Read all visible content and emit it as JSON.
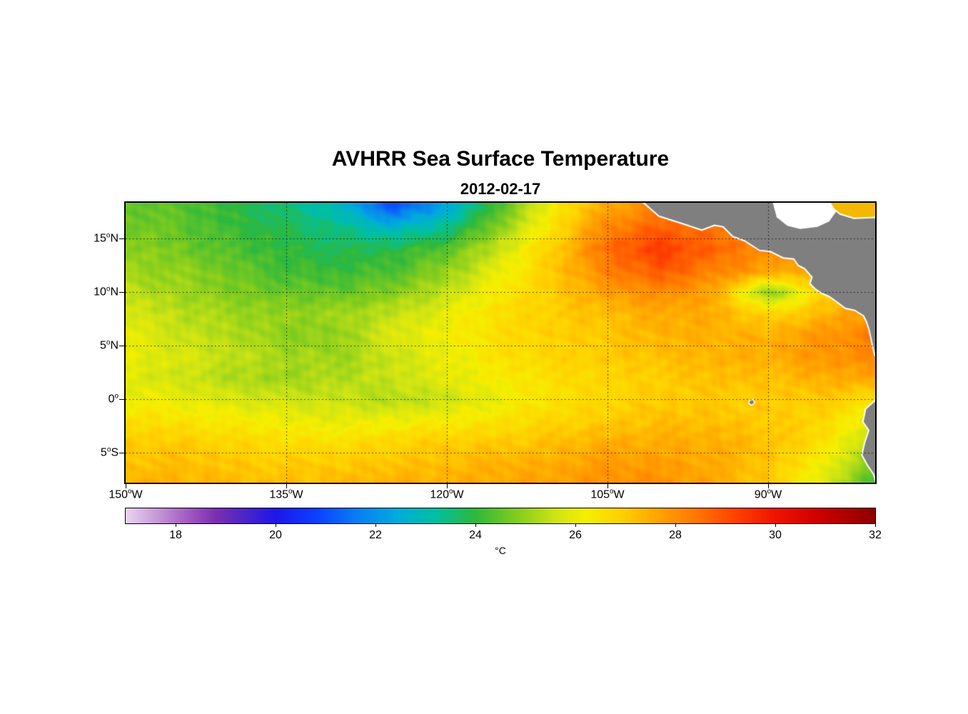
{
  "chart_data": {
    "type": "heatmap",
    "title": "AVHRR Sea Surface Temperature",
    "subtitle": "2012-02-17",
    "colorbar_label": "°C",
    "grid_on": true,
    "x_axis": {
      "min": -150,
      "max": -80,
      "ticks": [
        {
          "lon": -150,
          "num": "150",
          "deg": "o",
          "suffix": "W"
        },
        {
          "lon": -135,
          "num": "135",
          "deg": "o",
          "suffix": "W"
        },
        {
          "lon": -120,
          "num": "120",
          "deg": "o",
          "suffix": "W"
        },
        {
          "lon": -105,
          "num": "105",
          "deg": "o",
          "suffix": "W"
        },
        {
          "lon": -90,
          "num": "90",
          "deg": "o",
          "suffix": "W"
        }
      ]
    },
    "y_axis": {
      "min": -7.78,
      "max": 18.35,
      "ticks": [
        {
          "lat": 15,
          "num": "15",
          "deg": "o",
          "suffix": "N"
        },
        {
          "lat": 10,
          "num": "10",
          "deg": "o",
          "suffix": "N"
        },
        {
          "lat": 5,
          "num": "5",
          "deg": "o",
          "suffix": "N"
        },
        {
          "lat": 0,
          "num": "0",
          "deg": "o",
          "suffix": ""
        },
        {
          "lat": -5,
          "num": "5",
          "deg": "o",
          "suffix": "S"
        }
      ]
    },
    "gridline_lats": [
      15,
      10,
      5,
      0,
      -5
    ],
    "gridline_lons": [
      -135,
      -120,
      -105,
      -90
    ],
    "colorbar": {
      "min": 17,
      "max": 32,
      "tick_values": [
        18,
        20,
        22,
        24,
        26,
        28,
        30,
        32
      ]
    },
    "colormap": [
      {
        "t": 17.0,
        "c": "#E9D5EF"
      },
      {
        "t": 17.6,
        "c": "#C79BD8"
      },
      {
        "t": 18.2,
        "c": "#A55FC2"
      },
      {
        "t": 18.8,
        "c": "#7B2FB0"
      },
      {
        "t": 19.4,
        "c": "#4A25C8"
      },
      {
        "t": 20.0,
        "c": "#1F17E8"
      },
      {
        "t": 20.8,
        "c": "#0A40FF"
      },
      {
        "t": 21.6,
        "c": "#0A7CF2"
      },
      {
        "t": 22.4,
        "c": "#00AADF"
      },
      {
        "t": 23.2,
        "c": "#00C0A0"
      },
      {
        "t": 24.0,
        "c": "#2EB83C"
      },
      {
        "t": 24.8,
        "c": "#80CC1E"
      },
      {
        "t": 25.6,
        "c": "#CDE414"
      },
      {
        "t": 26.2,
        "c": "#F6EF00"
      },
      {
        "t": 26.9,
        "c": "#FFD200"
      },
      {
        "t": 27.6,
        "c": "#FFA800"
      },
      {
        "t": 28.4,
        "c": "#FF7800"
      },
      {
        "t": 29.2,
        "c": "#FF4200"
      },
      {
        "t": 30.0,
        "c": "#F01400"
      },
      {
        "t": 30.8,
        "c": "#D20000"
      },
      {
        "t": 31.4,
        "c": "#B00000"
      },
      {
        "t": 32.0,
        "c": "#8E0000"
      }
    ],
    "grid_lons": [
      -150,
      -145,
      -140,
      -135,
      -130,
      -125,
      -120,
      -115,
      -110,
      -105,
      -100,
      -95,
      -90,
      -85,
      -80
    ],
    "grid_lats": [
      18,
      16,
      14,
      12,
      10,
      8,
      6,
      4,
      2,
      0,
      -2,
      -4,
      -6,
      -8
    ],
    "sst_values": [
      [
        24.6,
        24.4,
        24.0,
        23.5,
        22.8,
        21.0,
        22.4,
        24.4,
        26.3,
        27.6,
        28.2,
        28.0,
        27.6,
        27.4,
        27.4
      ],
      [
        24.7,
        24.5,
        24.1,
        23.8,
        23.4,
        22.8,
        23.4,
        25.0,
        26.6,
        28.2,
        28.8,
        28.4,
        27.9,
        27.5,
        27.4
      ],
      [
        25.0,
        24.7,
        24.3,
        24.0,
        23.8,
        23.9,
        24.5,
        25.6,
        27.0,
        28.6,
        29.3,
        28.7,
        28.0,
        27.6,
        27.4
      ],
      [
        25.1,
        25.0,
        24.6,
        24.2,
        24.1,
        24.3,
        25.0,
        26.0,
        27.1,
        28.2,
        28.9,
        28.2,
        27.7,
        27.5,
        27.1
      ],
      [
        25.5,
        25.1,
        24.8,
        24.6,
        24.5,
        24.9,
        25.5,
        26.4,
        27.0,
        27.7,
        28.1,
        27.6,
        24.8,
        26.8,
        27.5
      ],
      [
        25.8,
        25.4,
        25.1,
        25.0,
        25.1,
        25.5,
        26.0,
        26.6,
        27.0,
        27.2,
        27.6,
        27.5,
        26.8,
        27.3,
        28.0
      ],
      [
        26.0,
        25.6,
        25.3,
        24.9,
        25.0,
        25.8,
        26.2,
        26.6,
        26.9,
        27.1,
        27.4,
        27.5,
        27.4,
        27.9,
        28.3
      ],
      [
        26.0,
        25.8,
        25.5,
        25.2,
        25.1,
        25.6,
        26.0,
        26.5,
        26.8,
        27.0,
        27.2,
        27.4,
        27.5,
        27.9,
        28.1
      ],
      [
        25.9,
        25.6,
        25.3,
        25.1,
        25.3,
        25.6,
        25.9,
        26.3,
        26.6,
        26.8,
        27.0,
        27.2,
        27.2,
        27.5,
        27.6
      ],
      [
        26.1,
        26.0,
        25.8,
        25.6,
        25.6,
        25.3,
        25.6,
        26.1,
        26.5,
        26.8,
        27.0,
        27.0,
        27.0,
        27.0,
        26.6
      ],
      [
        26.6,
        26.5,
        26.3,
        26.1,
        26.0,
        26.1,
        26.3,
        26.5,
        26.8,
        27.0,
        27.2,
        27.2,
        27.0,
        26.8,
        25.8
      ],
      [
        27.0,
        27.0,
        26.8,
        26.6,
        26.6,
        26.8,
        27.0,
        27.0,
        27.2,
        27.5,
        27.5,
        27.5,
        27.2,
        26.6,
        25.2
      ],
      [
        27.2,
        27.2,
        27.1,
        27.0,
        27.0,
        27.2,
        27.2,
        27.5,
        27.5,
        27.8,
        27.8,
        27.5,
        27.1,
        26.2,
        24.6
      ],
      [
        27.5,
        27.4,
        27.3,
        27.2,
        27.3,
        27.5,
        27.5,
        27.6,
        27.8,
        28.0,
        28.0,
        27.6,
        27.0,
        25.8,
        24.2
      ]
    ],
    "land_color": "#7F7F7F",
    "coast_color": "#FFFFFF",
    "land_polygons": {
      "central_america": [
        [
          -101.8,
          18.5
        ],
        [
          -100.2,
          17.1
        ],
        [
          -98.0,
          16.4
        ],
        [
          -96.2,
          15.8
        ],
        [
          -95.0,
          16.25
        ],
        [
          -94.2,
          16.1
        ],
        [
          -93.3,
          15.2
        ],
        [
          -92.2,
          14.8
        ],
        [
          -90.8,
          13.9
        ],
        [
          -89.8,
          13.8
        ],
        [
          -88.6,
          13.2
        ],
        [
          -87.6,
          13.1
        ],
        [
          -87.2,
          12.5
        ],
        [
          -86.6,
          12.2
        ],
        [
          -85.9,
          11.4
        ],
        [
          -86.1,
          10.8
        ],
        [
          -85.6,
          10.3
        ],
        [
          -85.0,
          9.9
        ],
        [
          -84.3,
          9.6
        ],
        [
          -83.6,
          9.1
        ],
        [
          -82.8,
          8.5
        ],
        [
          -81.9,
          8.3
        ],
        [
          -81.1,
          7.8
        ],
        [
          -80.8,
          7.2
        ],
        [
          -80.55,
          6.4
        ],
        [
          -80.3,
          5.2
        ],
        [
          -80.05,
          4.1
        ],
        [
          -79.8,
          4.1
        ],
        [
          -79.8,
          18.5
        ]
      ],
      "south_america": [
        [
          -79.8,
          -0.1
        ],
        [
          -80.0,
          -0.1
        ],
        [
          -80.9,
          -0.9
        ],
        [
          -81.15,
          -2.1
        ],
        [
          -80.6,
          -2.9
        ],
        [
          -81.0,
          -4.1
        ],
        [
          -81.25,
          -5.2
        ],
        [
          -80.7,
          -6.2
        ],
        [
          -80.15,
          -7.0
        ],
        [
          -79.9,
          -7.9
        ],
        [
          -79.8,
          -7.9
        ]
      ],
      "galapagos": [
        [
          -91.75,
          -0.1
        ],
        [
          -91.4,
          0.0
        ],
        [
          -91.25,
          -0.35
        ],
        [
          -91.55,
          -0.55
        ],
        [
          -91.8,
          -0.4
        ]
      ]
    },
    "overlays": {
      "caribbean_nodata": {
        "points": [
          [
            -89.6,
            18.5
          ],
          [
            -84.3,
            18.5
          ],
          [
            -83.6,
            17.6
          ],
          [
            -84.3,
            16.6
          ],
          [
            -85.4,
            16.1
          ],
          [
            -87.0,
            15.9
          ],
          [
            -88.2,
            16.2
          ],
          [
            -89.2,
            17.0
          ]
        ],
        "color": "#FFFFFF"
      },
      "caribbean_water": {
        "points": [
          [
            -84.3,
            18.5
          ],
          [
            -79.8,
            18.5
          ],
          [
            -79.8,
            17.0
          ],
          [
            -82.0,
            16.9
          ],
          [
            -83.3,
            17.3
          ],
          [
            -83.9,
            17.8
          ]
        ],
        "color": "#F5B800"
      }
    }
  }
}
